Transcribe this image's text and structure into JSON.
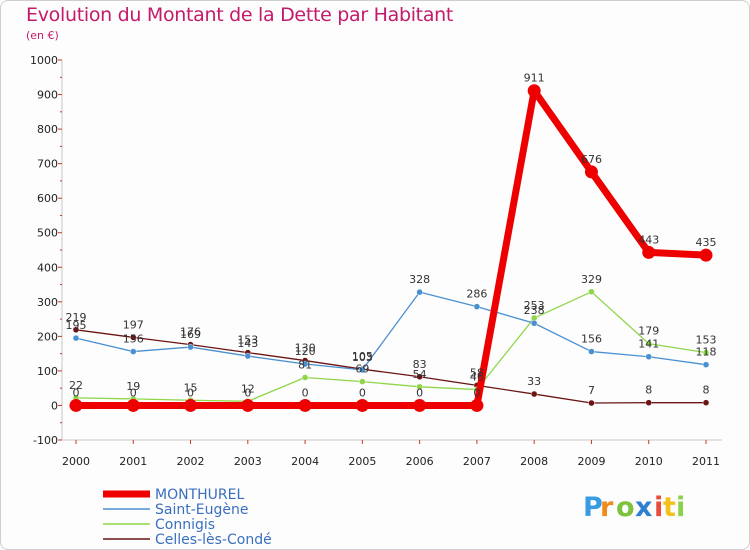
{
  "chart_data": {
    "type": "line",
    "title": "Evolution du Montant de la Dette par Habitant",
    "subtitle": "(en €)",
    "x": [
      "2000",
      "2001",
      "2002",
      "2003",
      "2004",
      "2005",
      "2006",
      "2007",
      "2008",
      "2009",
      "2010",
      "2011"
    ],
    "ylim": [
      -100,
      1000
    ],
    "yticks": [
      -100,
      0,
      100,
      200,
      300,
      400,
      500,
      600,
      700,
      800,
      900,
      1000
    ],
    "grid": false,
    "legend_position": "bottom-left",
    "series": [
      {
        "name": "MONTHUREL",
        "color": "#ee0000",
        "bold": true,
        "values": [
          0,
          0,
          0,
          0,
          0,
          0,
          0,
          0,
          911,
          676,
          443,
          435
        ],
        "labels": [
          "0",
          "0",
          "0",
          "0",
          "0",
          "0",
          "0",
          "0",
          "911",
          "676",
          "443",
          "435"
        ]
      },
      {
        "name": "Saint-Eugène",
        "color": "#4a90d0",
        "values": [
          195,
          156,
          169,
          143,
          120,
          103,
          328,
          286,
          238,
          156,
          141,
          118
        ],
        "labels": [
          "195",
          "156",
          "169",
          "143",
          "120",
          "103",
          "328",
          "286",
          "238",
          "156",
          "141",
          "118"
        ]
      },
      {
        "name": "Connigis",
        "color": "#8fd64a",
        "values": [
          22,
          19,
          15,
          12,
          81,
          69,
          54,
          46,
          253,
          329,
          179,
          153
        ],
        "labels": [
          "22",
          "19",
          "15",
          "12",
          "81",
          "69",
          "54",
          "46",
          "253",
          "329",
          "179",
          "153"
        ]
      },
      {
        "name": "Celles-lès-Condé",
        "color": "#6b1414",
        "values": [
          219,
          197,
          176,
          153,
          130,
          105,
          83,
          58,
          33,
          7,
          8,
          8
        ],
        "labels": [
          "219",
          "197",
          "176",
          "153",
          "130",
          "105",
          "83",
          "58",
          "33",
          "7",
          "8",
          "8"
        ]
      }
    ]
  },
  "logo": {
    "text": "Proxiti",
    "letters": [
      "P",
      "r",
      "o",
      "x",
      "i",
      "t",
      "i"
    ],
    "colors": [
      "#3b9be0",
      "#f08a1c",
      "#7cc23a",
      "#2f7fd1",
      "#e84c3d",
      "#f3c21a",
      "#8bd24a"
    ]
  }
}
